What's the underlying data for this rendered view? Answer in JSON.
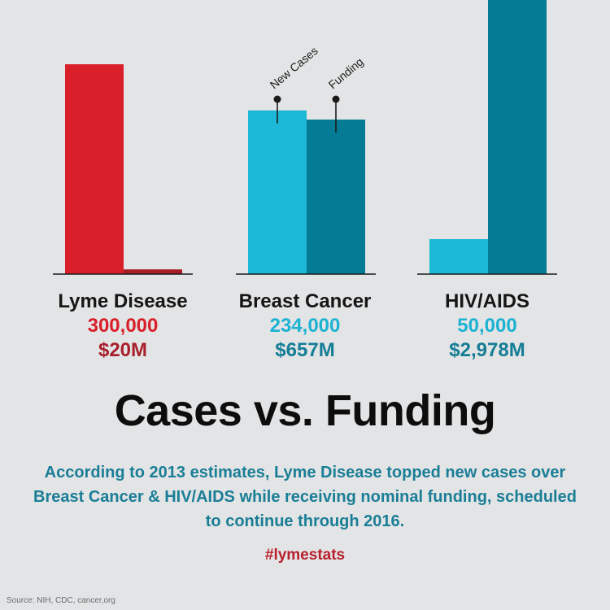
{
  "chart_data": {
    "type": "bar",
    "title": "Cases vs. Funding",
    "subtitle": "According to 2013 estimates, Lyme Disease topped new cases over Breast Cancer & HIV/AIDS while receiving nominal funding, scheduled to continue through 2016.",
    "categories": [
      "Lyme Disease",
      "Breast Cancer",
      "HIV/AIDS"
    ],
    "series": [
      {
        "name": "New Cases",
        "values": [
          300000,
          234000,
          50000
        ],
        "labels": [
          "300,000",
          "234,000",
          "50,000"
        ]
      },
      {
        "name": "Funding",
        "values": [
          20,
          657,
          2978
        ],
        "unit": "$M",
        "labels": [
          "$20M",
          "$657M",
          "$2,978M"
        ]
      }
    ],
    "colors": {
      "lyme_cases": "#d81f2a",
      "lyme_funding": "#a81c26",
      "cases": "#1cb8d7",
      "funding": "#047c96",
      "lyme_cases_text": "#d81f2a",
      "lyme_funding_text": "#a8202b",
      "cases_text": "#1cb3d3",
      "funding_text": "#157d96"
    }
  },
  "hashtag": "#lymestats",
  "source": "Source: NIH, CDC, cancer,org"
}
